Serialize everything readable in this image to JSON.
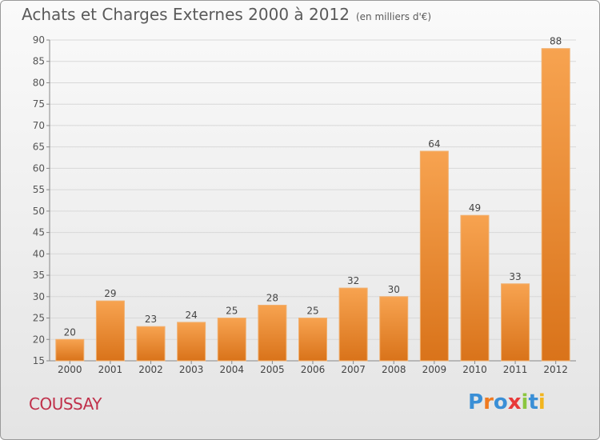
{
  "header": {
    "title": "Achats et Charges Externes 2000 à 2012",
    "unit": "(en milliers d'€)"
  },
  "footer": {
    "commune": "COUSSAY",
    "logo_text": "Proxiti"
  },
  "colors": {
    "bar_top": "#f7a350",
    "bar_bottom": "#d9731a",
    "grid": "#d8d8d8",
    "commune": "#c0304a"
  },
  "chart_data": {
    "type": "bar",
    "title": "Achats et Charges Externes 2000 à 2012",
    "subtitle": "(en milliers d'€)",
    "categories": [
      "2000",
      "2001",
      "2002",
      "2003",
      "2004",
      "2005",
      "2006",
      "2007",
      "2008",
      "2009",
      "2010",
      "2011",
      "2012"
    ],
    "values": [
      20,
      29,
      23,
      24,
      25,
      28,
      25,
      32,
      30,
      64,
      49,
      33,
      88
    ],
    "ylim": [
      15,
      90
    ],
    "yticks": [
      15,
      20,
      25,
      30,
      35,
      40,
      45,
      50,
      55,
      60,
      65,
      70,
      75,
      80,
      85,
      90
    ],
    "grid": true,
    "data_labels": true
  }
}
